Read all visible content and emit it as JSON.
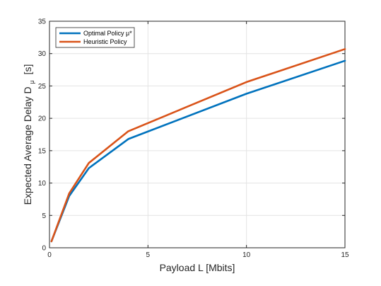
{
  "chart_data": {
    "type": "line",
    "xlabel": "Payload L [Mbits]",
    "ylabel": "Expected Average Delay D",
    "ylabel_subscript": "μ",
    "ylabel_unit": "[s]",
    "xlim": [
      0,
      15
    ],
    "ylim": [
      0,
      35
    ],
    "xticks": [
      0,
      5,
      10,
      15
    ],
    "yticks": [
      0,
      5,
      10,
      15,
      20,
      25,
      30,
      35
    ],
    "grid": true,
    "legend_position": "top-left",
    "series": [
      {
        "name": "Optimal Policy μ*",
        "color": "#0072BD",
        "x": [
          0.1,
          1,
          2,
          4,
          10,
          15
        ],
        "y": [
          1.0,
          8.0,
          12.3,
          16.8,
          23.8,
          28.9
        ]
      },
      {
        "name": "Heuristic Policy",
        "color": "#D95319",
        "x": [
          0.1,
          1,
          2,
          4,
          10,
          15
        ],
        "y": [
          1.0,
          8.4,
          13.1,
          18.0,
          25.6,
          30.7
        ]
      }
    ]
  }
}
